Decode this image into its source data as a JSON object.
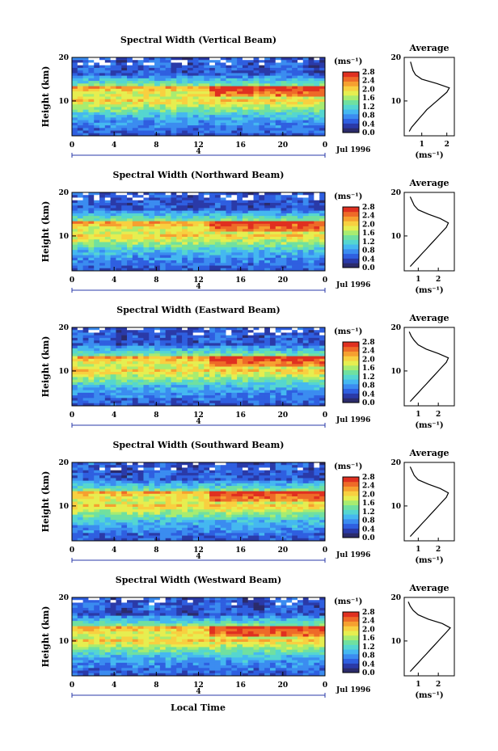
{
  "figure": {
    "xlabel": "Local Time",
    "date_label": "Jul 1996",
    "subrow_label": "4",
    "height_label": "Height (km)",
    "unit_label": "(ms⁻¹)",
    "average_title": "Average"
  },
  "colormap": {
    "ticks": [
      "0.0",
      "0.4",
      "0.8",
      "1.2",
      "1.6",
      "2.0",
      "2.4",
      "2.8"
    ],
    "colors": [
      "#2b2b6b",
      "#2a3aa8",
      "#2f5fe0",
      "#3b8cf0",
      "#45b8f0",
      "#55d6d0",
      "#70e0a0",
      "#a8ec70",
      "#e6ee50",
      "#f8d040",
      "#f6a030",
      "#ee6a28",
      "#e03020"
    ]
  },
  "chart_data": [
    {
      "type": "heatmap",
      "title": "Spectral Width (Vertical Beam)",
      "xlabel": "Local Time",
      "ylabel": "Height (km)",
      "xlim": [
        0,
        24
      ],
      "ylim": [
        2,
        20
      ],
      "xticks": [
        "0",
        "4",
        "8",
        "12",
        "16",
        "20",
        "0"
      ],
      "yticks": [
        "20",
        "10"
      ],
      "colorbar": {
        "label": "(ms⁻¹)",
        "range": [
          0,
          2.8
        ]
      },
      "profile": {
        "title": "Average",
        "xlabel": "(ms⁻¹)",
        "xticks": [
          "1",
          "2"
        ],
        "xlim": [
          0.3,
          2.3
        ],
        "height": [
          3,
          4,
          5,
          6,
          7,
          8,
          9,
          10,
          11,
          12,
          13,
          14,
          15,
          16,
          17,
          18,
          19
        ],
        "width": [
          0.5,
          0.6,
          0.75,
          0.9,
          1.05,
          1.2,
          1.4,
          1.6,
          1.8,
          2.0,
          2.1,
          1.6,
          1.0,
          0.75,
          0.65,
          0.6,
          0.55
        ]
      }
    },
    {
      "type": "heatmap",
      "title": "Spectral Width (Northward Beam)",
      "xlabel": "Local Time",
      "ylabel": "Height (km)",
      "xlim": [
        0,
        24
      ],
      "ylim": [
        2,
        20
      ],
      "xticks": [
        "0",
        "4",
        "8",
        "12",
        "16",
        "20",
        "0"
      ],
      "yticks": [
        "20",
        "10"
      ],
      "colorbar": {
        "label": "(ms⁻¹)",
        "range": [
          0,
          2.8
        ]
      },
      "profile": {
        "title": "Average",
        "xlabel": "(ms⁻¹)",
        "xticks": [
          "1",
          "2"
        ],
        "xlim": [
          0.3,
          2.8
        ],
        "height": [
          3,
          4,
          5,
          6,
          7,
          8,
          9,
          10,
          11,
          12,
          13,
          14,
          15,
          16,
          17,
          18,
          19
        ],
        "width": [
          0.6,
          0.8,
          1.0,
          1.2,
          1.4,
          1.6,
          1.8,
          2.0,
          2.2,
          2.4,
          2.5,
          2.1,
          1.5,
          1.0,
          0.8,
          0.7,
          0.6
        ]
      }
    },
    {
      "type": "heatmap",
      "title": "Spectral Width (Eastward Beam)",
      "xlabel": "Local Time",
      "ylabel": "Height (km)",
      "xlim": [
        0,
        24
      ],
      "ylim": [
        2,
        20
      ],
      "xticks": [
        "0",
        "4",
        "8",
        "12",
        "16",
        "20",
        "0"
      ],
      "yticks": [
        "20",
        "10"
      ],
      "colorbar": {
        "label": "(ms⁻¹)",
        "range": [
          0,
          2.8
        ]
      },
      "profile": {
        "title": "Average",
        "xlabel": "(ms⁻¹)",
        "xticks": [
          "1",
          "2"
        ],
        "xlim": [
          0.3,
          2.8
        ],
        "height": [
          3,
          4,
          5,
          6,
          7,
          8,
          9,
          10,
          11,
          12,
          13,
          14,
          15,
          16,
          17,
          18,
          19
        ],
        "width": [
          0.6,
          0.8,
          1.0,
          1.2,
          1.4,
          1.6,
          1.8,
          2.0,
          2.2,
          2.4,
          2.5,
          2.0,
          1.4,
          1.0,
          0.8,
          0.65,
          0.55
        ]
      }
    },
    {
      "type": "heatmap",
      "title": "Spectral Width (Southward Beam)",
      "xlabel": "Local Time",
      "ylabel": "Height (km)",
      "xlim": [
        0,
        24
      ],
      "ylim": [
        2,
        20
      ],
      "xticks": [
        "0",
        "4",
        "8",
        "12",
        "16",
        "20",
        "0"
      ],
      "yticks": [
        "20",
        "10"
      ],
      "colorbar": {
        "label": "(ms⁻¹)",
        "range": [
          0,
          2.8
        ]
      },
      "profile": {
        "title": "Average",
        "xlabel": "(ms⁻¹)",
        "xticks": [
          "1",
          "2"
        ],
        "xlim": [
          0.3,
          2.8
        ],
        "height": [
          3,
          4,
          5,
          6,
          7,
          8,
          9,
          10,
          11,
          12,
          13,
          14,
          15,
          16,
          17,
          18,
          19
        ],
        "width": [
          0.6,
          0.8,
          1.0,
          1.2,
          1.4,
          1.6,
          1.8,
          2.0,
          2.2,
          2.4,
          2.5,
          2.1,
          1.5,
          1.0,
          0.8,
          0.7,
          0.6
        ]
      }
    },
    {
      "type": "heatmap",
      "title": "Spectral Width (Westward Beam)",
      "xlabel": "Local Time",
      "ylabel": "Height (km)",
      "xlim": [
        0,
        24
      ],
      "ylim": [
        2,
        20
      ],
      "xticks": [
        "0",
        "4",
        "8",
        "12",
        "16",
        "20",
        "0"
      ],
      "yticks": [
        "20",
        "10"
      ],
      "colorbar": {
        "label": "(ms⁻¹)",
        "range": [
          0,
          2.8
        ]
      },
      "profile": {
        "title": "Average",
        "xlabel": "(ms⁻¹)",
        "xticks": [
          "1",
          "2"
        ],
        "xlim": [
          0.3,
          2.8
        ],
        "height": [
          3,
          4,
          5,
          6,
          7,
          8,
          9,
          10,
          11,
          12,
          13,
          14,
          15,
          16,
          17,
          18,
          19
        ],
        "width": [
          0.6,
          0.8,
          1.0,
          1.2,
          1.4,
          1.6,
          1.8,
          2.0,
          2.2,
          2.4,
          2.6,
          2.2,
          1.5,
          1.0,
          0.75,
          0.6,
          0.5
        ]
      }
    }
  ]
}
